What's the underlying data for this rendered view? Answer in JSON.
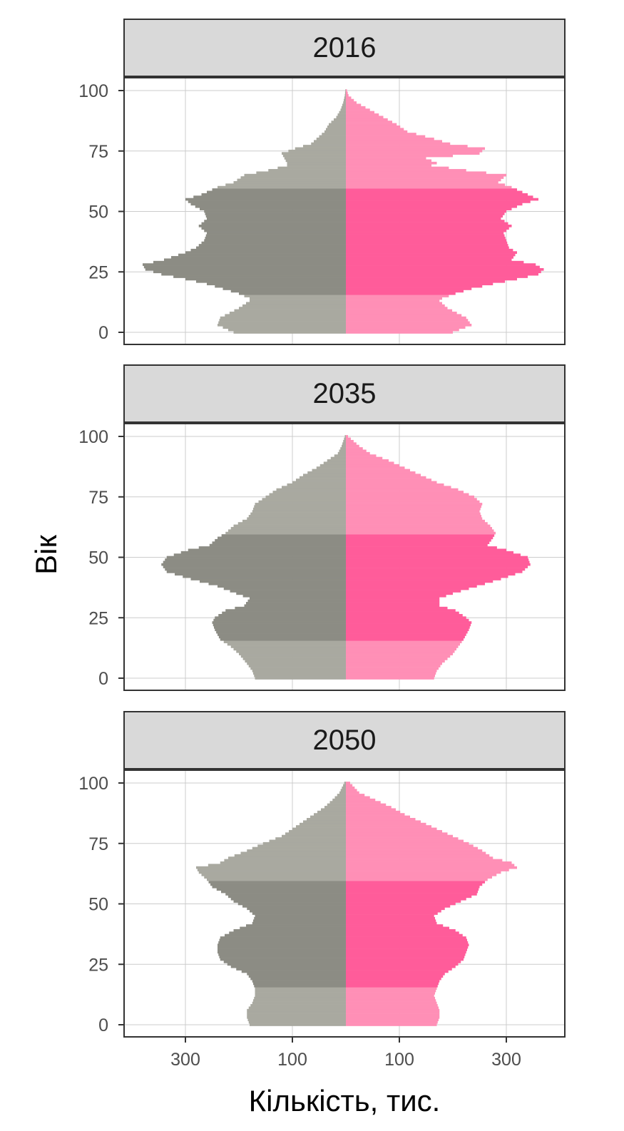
{
  "chart_data": {
    "type": "bar",
    "orientation": "horizontal",
    "layout": "population-pyramid",
    "xlabel": "Кількість, тис.",
    "ylabel": "Вік",
    "y_ticks": [
      "0",
      "25",
      "50",
      "75",
      "100"
    ],
    "x_tick_labels": [
      "300",
      "100",
      "100",
      "300"
    ],
    "y_range": [
      0,
      100
    ],
    "grid": true,
    "colors": {
      "male": "#8c8c84",
      "female": "#ff5c9a",
      "male_light": "#a9a9a0",
      "female_light": "#ff8fb6",
      "strip_bg": "#d9d9d9",
      "panel_border": "#333333",
      "grid": "#cccccc"
    },
    "age_groups": [
      {
        "from": 0,
        "to": 15,
        "shade": "light"
      },
      {
        "from": 16,
        "to": 59,
        "shade": "dark"
      },
      {
        "from": 60,
        "to": 100,
        "shade": "light"
      }
    ],
    "panels": [
      {
        "strip": "2016",
        "series": [
          {
            "side": "left",
            "ages": [
              0,
              3,
              6,
              10,
              13,
              14,
              16,
              18,
              20,
              22,
              24,
              26,
              28,
              30,
              33,
              35,
              38,
              41,
              44,
              47,
              50,
              53,
              55,
              57,
              60,
              62,
              65,
              67,
              69,
              70,
              72,
              74,
              76,
              78,
              80,
              83,
              86,
              89,
              92,
              95,
              98,
              100
            ],
            "values": [
              210,
              240,
              235,
              200,
              180,
              180,
              200,
              230,
              260,
              300,
              345,
              375,
              380,
              340,
              300,
              280,
              265,
              260,
              275,
              260,
              265,
              290,
              300,
              270,
              240,
              210,
              190,
              145,
              110,
              110,
              115,
              120,
              95,
              65,
              55,
              40,
              32,
              18,
              10,
              5,
              2,
              1
            ]
          },
          {
            "side": "right",
            "ages": [
              0,
              3,
              6,
              10,
              13,
              14,
              16,
              18,
              20,
              22,
              24,
              26,
              28,
              30,
              33,
              35,
              38,
              41,
              44,
              47,
              50,
              53,
              55,
              57,
              60,
              62,
              65,
              67,
              69,
              70,
              72,
              74,
              76,
              78,
              80,
              83,
              86,
              89,
              92,
              95,
              98,
              100
            ],
            "values": [
              200,
              235,
              225,
              190,
              175,
              180,
              205,
              235,
              275,
              320,
              360,
              370,
              355,
              310,
              320,
              305,
              300,
              295,
              310,
              290,
              300,
              330,
              360,
              340,
              310,
              285,
              300,
              225,
              160,
              170,
              150,
              250,
              260,
              195,
              165,
              115,
              95,
              70,
              45,
              20,
              5,
              2
            ]
          }
        ]
      },
      {
        "strip": "2035",
        "series": [
          {
            "side": "left",
            "ages": [
              0,
              3,
              6,
              10,
              13,
              16,
              20,
              23,
              25,
              28,
              30,
              33,
              35,
              38,
              41,
              44,
              47,
              50,
              53,
              55,
              58,
              60,
              63,
              66,
              69,
              72,
              75,
              78,
              81,
              84,
              87,
              90,
              93,
              96,
              100
            ],
            "values": [
              170,
              175,
              185,
              200,
              215,
              235,
              245,
              250,
              245,
              225,
              190,
              180,
              205,
              240,
              290,
              335,
              345,
              335,
              295,
              255,
              240,
              225,
              210,
              185,
              175,
              170,
              150,
              130,
              100,
              80,
              55,
              35,
              15,
              8,
              2
            ]
          },
          {
            "side": "right",
            "ages": [
              0,
              3,
              6,
              10,
              13,
              16,
              20,
              23,
              25,
              28,
              30,
              33,
              35,
              38,
              41,
              44,
              47,
              50,
              53,
              55,
              58,
              60,
              63,
              66,
              69,
              72,
              75,
              78,
              81,
              84,
              87,
              90,
              93,
              96,
              100
            ],
            "values": [
              165,
              170,
              180,
              200,
              210,
              220,
              230,
              235,
              225,
              205,
              175,
              175,
              200,
              245,
              290,
              330,
              345,
              340,
              300,
              265,
              275,
              280,
              270,
              255,
              250,
              255,
              240,
              210,
              170,
              140,
              110,
              80,
              45,
              25,
              4
            ]
          }
        ]
      },
      {
        "strip": "2050",
        "series": [
          {
            "side": "left",
            "ages": [
              0,
              3,
              6,
              9,
              12,
              15,
              18,
              21,
              24,
              27,
              30,
              33,
              36,
              39,
              42,
              45,
              48,
              51,
              54,
              57,
              60,
              63,
              65,
              67,
              69,
              72,
              75,
              78,
              81,
              84,
              87,
              90,
              93,
              96,
              100
            ],
            "values": [
              180,
              185,
              185,
              175,
              170,
              170,
              175,
              185,
              215,
              235,
              240,
              240,
              235,
              210,
              175,
              170,
              185,
              210,
              225,
              250,
              260,
              275,
              280,
              235,
              220,
              185,
              155,
              120,
              100,
              80,
              60,
              40,
              25,
              12,
              3
            ]
          },
          {
            "side": "right",
            "ages": [
              0,
              3,
              6,
              9,
              12,
              15,
              18,
              21,
              24,
              27,
              30,
              33,
              36,
              39,
              42,
              45,
              48,
              51,
              54,
              57,
              60,
              63,
              65,
              67,
              69,
              72,
              75,
              78,
              81,
              84,
              87,
              90,
              93,
              96,
              100
            ],
            "values": [
              170,
              175,
              175,
              170,
              165,
              170,
              175,
              185,
              205,
              220,
              225,
              230,
              225,
              205,
              170,
              165,
              185,
              215,
              245,
              250,
              265,
              290,
              320,
              310,
              275,
              255,
              230,
              200,
              170,
              140,
              110,
              85,
              55,
              25,
              8
            ]
          }
        ]
      }
    ]
  }
}
